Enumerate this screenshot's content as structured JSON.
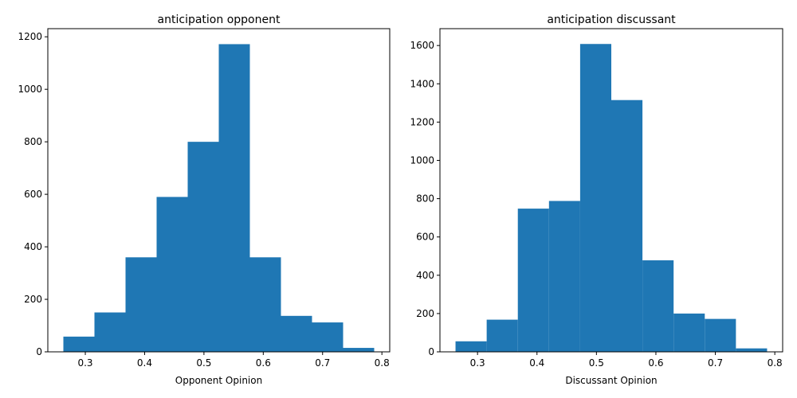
{
  "chart_data": [
    {
      "type": "bar",
      "title": "anticipation opponent",
      "xlabel": "Opponent Opinion",
      "ylabel": "",
      "bin_edges": [
        0.263,
        0.3154,
        0.3678,
        0.4202,
        0.4726,
        0.525,
        0.5774,
        0.6298,
        0.6822,
        0.7346,
        0.787
      ],
      "values": [
        58,
        150,
        360,
        590,
        800,
        1172,
        360,
        137,
        112,
        15
      ],
      "xlim": [
        0.2368,
        0.8132
      ],
      "ylim": [
        0,
        1231
      ],
      "xticks": [
        0.3,
        0.4,
        0.5,
        0.6,
        0.7,
        0.8
      ],
      "xtick_labels": [
        "0.3",
        "0.4",
        "0.5",
        "0.6",
        "0.7",
        "0.8"
      ],
      "yticks": [
        0,
        200,
        400,
        600,
        800,
        1000,
        1200
      ],
      "ytick_labels": [
        "0",
        "200",
        "400",
        "600",
        "800",
        "1000",
        "1200"
      ],
      "color": "#1f77b4",
      "grid": false
    },
    {
      "type": "bar",
      "title": "anticipation discussant",
      "xlabel": "Discussant Opinion",
      "ylabel": "",
      "bin_edges": [
        0.263,
        0.3154,
        0.3678,
        0.4202,
        0.4726,
        0.525,
        0.5774,
        0.6298,
        0.6822,
        0.7346,
        0.787
      ],
      "values": [
        55,
        168,
        748,
        788,
        1608,
        1315,
        478,
        200,
        172,
        18
      ],
      "xlim": [
        0.2368,
        0.8132
      ],
      "ylim": [
        0,
        1688
      ],
      "xticks": [
        0.3,
        0.4,
        0.5,
        0.6,
        0.7,
        0.8
      ],
      "xtick_labels": [
        "0.3",
        "0.4",
        "0.5",
        "0.6",
        "0.7",
        "0.8"
      ],
      "yticks": [
        0,
        200,
        400,
        600,
        800,
        1000,
        1200,
        1400,
        1600
      ],
      "ytick_labels": [
        "0",
        "200",
        "400",
        "600",
        "800",
        "1000",
        "1200",
        "1400",
        "1600"
      ],
      "color": "#1f77b4",
      "grid": false
    }
  ]
}
